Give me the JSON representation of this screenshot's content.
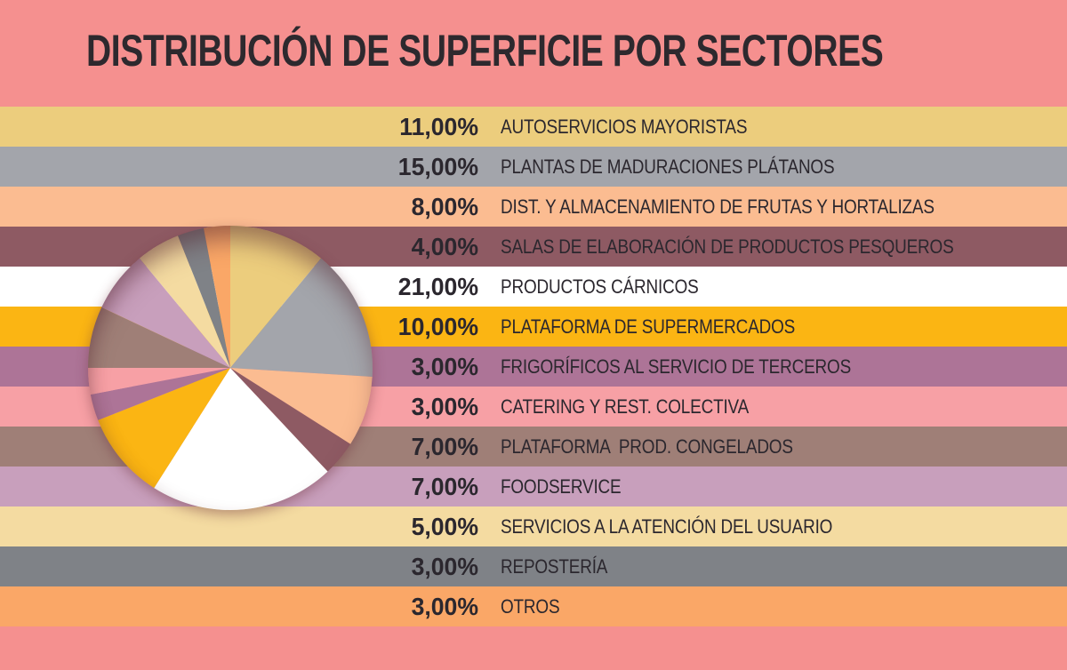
{
  "title": "DISTRIBUCIÓN DE SUPERFICIE POR SECTORES",
  "colors": {
    "background": "#f5908f",
    "title_text": "#2d292e",
    "row_text": "#2b272e"
  },
  "chart_data": {
    "type": "pie",
    "title": "DISTRIBUCIÓN DE SUPERFICIE POR SECTORES",
    "unit": "%",
    "start_angle_deg": 0,
    "direction": "clockwise",
    "legend_position": "right-rows",
    "total": 100,
    "sectors": [
      {
        "label": "AUTOSERVICIOS MAYORISTAS",
        "value": 11,
        "pct_label": "11,00%",
        "color": "#eccd7d"
      },
      {
        "label": "PLANTAS DE MADURACIONES PLÁTANOS",
        "value": 15,
        "pct_label": "15,00%",
        "color": "#a3a5ab"
      },
      {
        "label": "DIST. Y ALMACENAMIENTO DE FRUTAS Y HORTALIZAS",
        "value": 8,
        "pct_label": "8,00%",
        "color": "#fbbc91"
      },
      {
        "label": "SALAS DE ELABORACIÓN DE PRODUCTOS PESQUEROS",
        "value": 4,
        "pct_label": "4,00%",
        "color": "#8e5a63"
      },
      {
        "label": "PRODUCTOS CÁRNICOS",
        "value": 21,
        "pct_label": "21,00%",
        "color": "#ffffff"
      },
      {
        "label": "PLATAFORMA DE SUPERMERCADOS",
        "value": 10,
        "pct_label": "10,00%",
        "color": "#fbb513"
      },
      {
        "label": "FRIGORÍFICOS AL SERVICIO DE TERCEROS",
        "value": 3,
        "pct_label": "3,00%",
        "color": "#ad7497"
      },
      {
        "label": "CATERING Y REST. COLECTIVA",
        "value": 3,
        "pct_label": "3,00%",
        "color": "#f7a0a5"
      },
      {
        "label": "PLATAFORMA  PROD. CONGELADOS",
        "value": 7,
        "pct_label": "7,00%",
        "color": "#9f7f77"
      },
      {
        "label": "FOODSERVICE",
        "value": 7,
        "pct_label": "7,00%",
        "color": "#c89fbc"
      },
      {
        "label": "SERVICIOS A LA ATENCIÓN DEL USUARIO",
        "value": 5,
        "pct_label": "5,00%",
        "color": "#f4dba1"
      },
      {
        "label": "REPOSTERÍA",
        "value": 3,
        "pct_label": "3,00%",
        "color": "#7f8287"
      },
      {
        "label": "OTROS",
        "value": 3,
        "pct_label": "3,00%",
        "color": "#faa767"
      }
    ]
  }
}
